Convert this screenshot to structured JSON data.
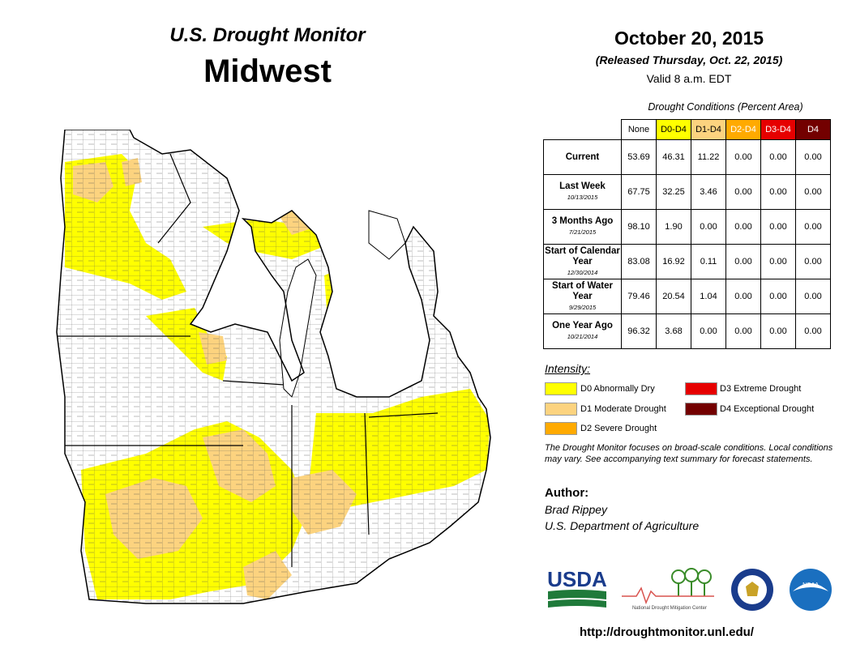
{
  "header": {
    "title_line1": "U.S. Drought Monitor",
    "title_line2": "Midwest",
    "date": "October 20, 2015",
    "released": "(Released Thursday, Oct. 22, 2015)",
    "valid": "Valid  8 a.m. EDT"
  },
  "conditions_table": {
    "title": "Drought Conditions (Percent Area)",
    "columns": [
      {
        "label": "None",
        "color": "#ffffff",
        "text_color": "#000000"
      },
      {
        "label": "D0-D4",
        "color": "#ffff00",
        "text_color": "#000000"
      },
      {
        "label": "D1-D4",
        "color": "#fcd37f",
        "text_color": "#000000"
      },
      {
        "label": "D2-D4",
        "color": "#ffaa00",
        "text_color": "#ffffff"
      },
      {
        "label": "D3-D4",
        "color": "#e60000",
        "text_color": "#ffffff"
      },
      {
        "label": "D4",
        "color": "#730000",
        "text_color": "#ffffff"
      }
    ],
    "rows": [
      {
        "label": "Current",
        "sublabel": "",
        "values": [
          "53.69",
          "46.31",
          "11.22",
          "0.00",
          "0.00",
          "0.00"
        ]
      },
      {
        "label": "Last Week",
        "sublabel": "10/13/2015",
        "values": [
          "67.75",
          "32.25",
          "3.46",
          "0.00",
          "0.00",
          "0.00"
        ]
      },
      {
        "label": "3 Months Ago",
        "sublabel": "7/21/2015",
        "values": [
          "98.10",
          "1.90",
          "0.00",
          "0.00",
          "0.00",
          "0.00"
        ]
      },
      {
        "label": "Start of Calendar Year",
        "sublabel": "12/30/2014",
        "values": [
          "83.08",
          "16.92",
          "0.11",
          "0.00",
          "0.00",
          "0.00"
        ]
      },
      {
        "label": "Start of Water Year",
        "sublabel": "9/29/2015",
        "values": [
          "79.46",
          "20.54",
          "1.04",
          "0.00",
          "0.00",
          "0.00"
        ]
      },
      {
        "label": "One Year Ago",
        "sublabel": "10/21/2014",
        "values": [
          "96.32",
          "3.68",
          "0.00",
          "0.00",
          "0.00",
          "0.00"
        ]
      }
    ]
  },
  "legend": {
    "title": "Intensity:",
    "items": [
      {
        "label": "D0 Abnormally Dry",
        "color": "#ffff00"
      },
      {
        "label": "D1 Moderate Drought",
        "color": "#fcd37f"
      },
      {
        "label": "D2 Severe Drought",
        "color": "#ffaa00"
      },
      {
        "label": "D3 Extreme Drought",
        "color": "#e60000"
      },
      {
        "label": "D4 Exceptional Drought",
        "color": "#730000"
      }
    ]
  },
  "note": "The Drought Monitor focuses on broad-scale conditions. Local conditions may vary. See accompanying text summary for forecast statements.",
  "author": {
    "title": "Author:",
    "name": "Brad Rippey",
    "org": "U.S. Department of Agriculture"
  },
  "logos": {
    "usda": "USDA",
    "ndmc": "National Drought Mitigation Center",
    "doc": "commerce-seal",
    "noaa": "NOAA"
  },
  "url": "http://droughtmonitor.unl.edu/",
  "map": {
    "region": "Midwest",
    "fill_colors": {
      "none": "#ffffff",
      "d0": "#ffff00",
      "d1": "#fcd37f"
    }
  }
}
